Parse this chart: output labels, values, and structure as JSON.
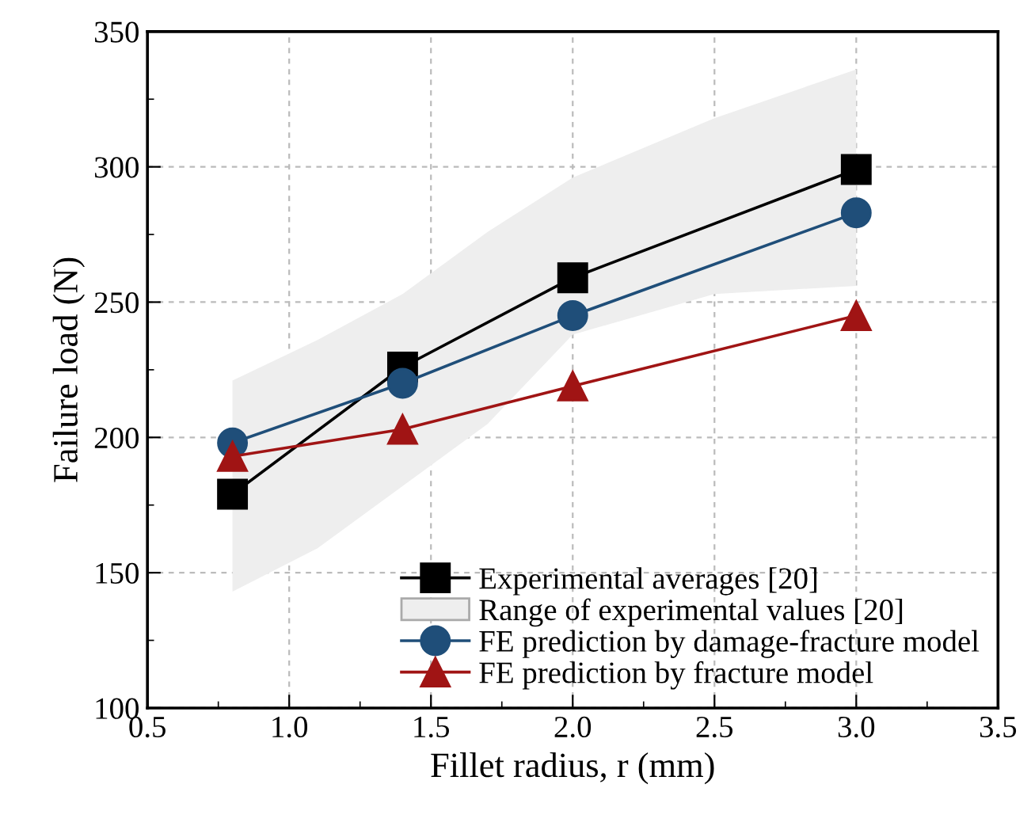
{
  "chart_data": {
    "type": "line",
    "xlabel": "Fillet radius, r (mm)",
    "ylabel": "Failure load (N)",
    "xlim": [
      0.5,
      3.5
    ],
    "xticks": [
      0.5,
      {
        "value": 1,
        "label": "1.0"
      },
      1.5,
      {
        "value": 2,
        "label": "2.0"
      },
      2.5,
      {
        "value": 3,
        "label": "3.0"
      },
      3.5
    ],
    "ylim": [
      100,
      350
    ],
    "yticks": [
      100,
      150,
      200,
      250,
      300,
      350
    ],
    "grid": true,
    "legend": "bottom right",
    "series": [
      {
        "name": "Experimental averages [20]",
        "color": "#000000",
        "marker": "square",
        "x": [
          0.8,
          1.4,
          2.0,
          3.0
        ],
        "values": [
          179,
          226,
          259,
          299
        ]
      },
      {
        "name": "Range of experimental values [20]",
        "type": "area",
        "color": "#eeeeee",
        "x": [
          0.8,
          1.1,
          1.4,
          1.7,
          2.0,
          2.5,
          3.0
        ],
        "values": [
          null,
          null,
          null,
          null,
          null,
          null,
          null
        ],
        "lower": [
          143,
          159,
          182,
          205,
          238,
          253,
          256
        ],
        "upper": [
          221,
          236,
          253,
          276,
          296,
          318,
          336
        ]
      },
      {
        "name": "FE prediction by damage-fracture model",
        "color": "#1f4e79",
        "marker": "circle",
        "x": [
          0.8,
          1.4,
          2.0,
          3.0
        ],
        "values": [
          198,
          220,
          245,
          283
        ]
      },
      {
        "name": "FE prediction by fracture model",
        "color": "#a01414",
        "marker": "triangle",
        "x": [
          0.8,
          1.4,
          2.0,
          3.0
        ],
        "values": [
          193,
          203,
          219,
          245
        ]
      }
    ]
  }
}
